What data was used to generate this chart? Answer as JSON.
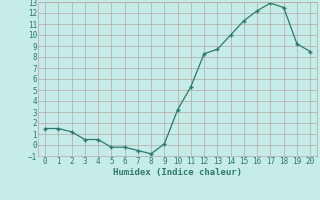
{
  "x": [
    0,
    1,
    2,
    3,
    4,
    5,
    6,
    7,
    8,
    9,
    10,
    11,
    12,
    13,
    14,
    15,
    16,
    17,
    18,
    19,
    20
  ],
  "y": [
    1.5,
    1.5,
    1.2,
    0.5,
    0.5,
    -0.2,
    -0.2,
    -0.5,
    -0.8,
    0.1,
    3.2,
    5.3,
    8.3,
    8.7,
    10.0,
    11.3,
    12.2,
    12.9,
    12.5,
    9.2,
    8.5
  ],
  "line_color": "#2d7a6a",
  "marker_color": "#2d7a6a",
  "bg_color": "#c5ece8",
  "grid_color": "#b8a8a0",
  "xlabel": "Humidex (Indice chaleur)",
  "ylim": [
    -1,
    13
  ],
  "xlim": [
    -0.5,
    20.5
  ],
  "yticks": [
    -1,
    0,
    1,
    2,
    3,
    4,
    5,
    6,
    7,
    8,
    9,
    10,
    11,
    12,
    13
  ],
  "xticks": [
    0,
    1,
    2,
    3,
    4,
    5,
    6,
    7,
    8,
    9,
    10,
    11,
    12,
    13,
    14,
    15,
    16,
    17,
    18,
    19,
    20
  ],
  "tick_fontsize": 5.5,
  "label_fontsize": 6.5
}
